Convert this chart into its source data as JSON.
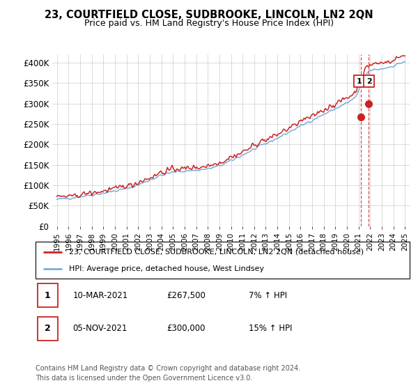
{
  "title": "23, COURTFIELD CLOSE, SUDBROOKE, LINCOLN, LN2 2QN",
  "subtitle": "Price paid vs. HM Land Registry's House Price Index (HPI)",
  "ylabel_ticks": [
    "£0",
    "£50K",
    "£100K",
    "£150K",
    "£200K",
    "£250K",
    "£300K",
    "£350K",
    "£400K"
  ],
  "ytick_values": [
    0,
    50000,
    100000,
    150000,
    200000,
    250000,
    300000,
    350000,
    400000
  ],
  "ylim": [
    0,
    420000
  ],
  "sale1_year": 2021.19,
  "sale1_price": 267500,
  "sale2_year": 2021.84,
  "sale2_price": 300000,
  "legend_line1": "23, COURTFIELD CLOSE, SUDBROOKE, LINCOLN, LN2 2QN (detached house)",
  "legend_line2": "HPI: Average price, detached house, West Lindsey",
  "table_row1": [
    "1",
    "10-MAR-2021",
    "£267,500",
    "7% ↑ HPI"
  ],
  "table_row2": [
    "2",
    "05-NOV-2021",
    "£300,000",
    "15% ↑ HPI"
  ],
  "footer": "Contains HM Land Registry data © Crown copyright and database right 2024.\nThis data is licensed under the Open Government Licence v3.0.",
  "hpi_color": "#7aaddb",
  "price_color": "#cc2222",
  "sale_marker_color": "#cc2222",
  "bg_color": "#ffffff",
  "grid_color": "#cccccc",
  "xlim_left": 1994.6,
  "xlim_right": 2025.4
}
